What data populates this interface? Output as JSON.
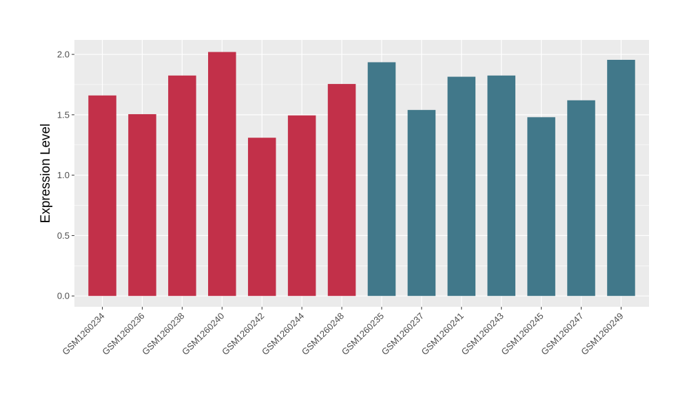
{
  "chart_data": {
    "type": "bar",
    "title": "",
    "xlabel": "",
    "ylabel": "Expression Level",
    "ylim": [
      -0.09,
      2.12
    ],
    "yticks": [
      0.0,
      0.5,
      1.0,
      1.5,
      2.0
    ],
    "ytick_labels": [
      "0.0",
      "0.5",
      "1.0",
      "1.5",
      "2.0"
    ],
    "grid": true,
    "legend": "none",
    "categories": [
      "GSM1260234",
      "GSM1260236",
      "GSM1260238",
      "GSM1260240",
      "GSM1260242",
      "GSM1260244",
      "GSM1260248",
      "GSM1260235",
      "GSM1260237",
      "GSM1260241",
      "GSM1260243",
      "GSM1260245",
      "GSM1260247",
      "GSM1260249"
    ],
    "values": [
      1.66,
      1.505,
      1.825,
      2.02,
      1.31,
      1.495,
      1.755,
      1.935,
      1.54,
      1.815,
      1.825,
      1.48,
      1.62,
      1.955
    ],
    "bar_colors": [
      "#c23049",
      "#c23049",
      "#c23049",
      "#c23049",
      "#c23049",
      "#c23049",
      "#c23049",
      "#41788a",
      "#41788a",
      "#41788a",
      "#41788a",
      "#41788a",
      "#41788a",
      "#41788a"
    ],
    "panel_background": "#ebebeb",
    "grid_color": "#ffffff"
  }
}
